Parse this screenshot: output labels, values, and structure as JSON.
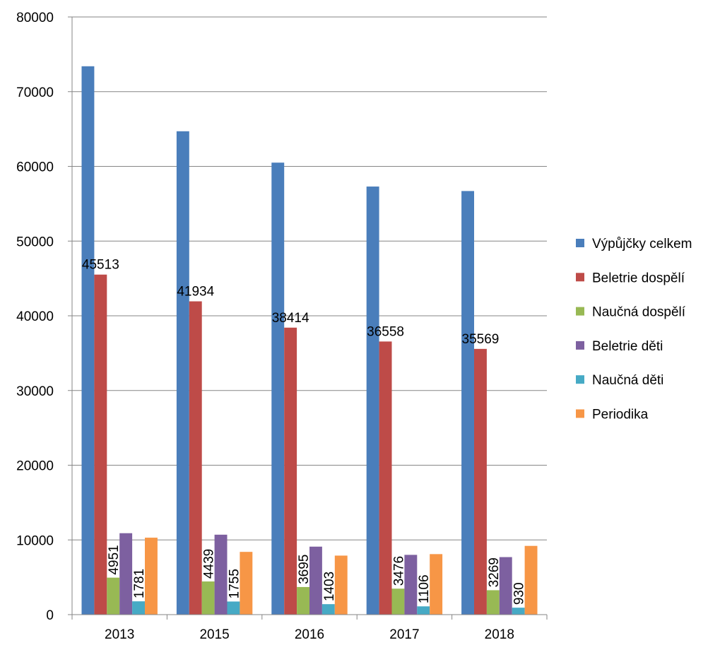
{
  "chart_data": {
    "type": "bar",
    "categories": [
      "2013",
      "2015",
      "2016",
      "2017",
      "2018"
    ],
    "ylim": [
      0,
      80000
    ],
    "yticks": [
      0,
      10000,
      20000,
      30000,
      40000,
      50000,
      60000,
      70000,
      80000
    ],
    "grid": true,
    "legend_position": "right",
    "series": [
      {
        "name": "Výpůjčky celkem",
        "color": "#4A7EBB",
        "values": [
          73400,
          64700,
          60500,
          57300,
          56700
        ],
        "labels": []
      },
      {
        "name": "Beletrie dospělí",
        "color": "#BE4B48",
        "values": [
          45513,
          41934,
          38414,
          36558,
          35569
        ],
        "labels": [
          "45513",
          "41934",
          "38414",
          "36558",
          "35569"
        ]
      },
      {
        "name": "Naučná dospělí",
        "color": "#98B954",
        "values": [
          4951,
          4439,
          3695,
          3476,
          3269
        ],
        "labels": [
          "4951",
          "4439",
          "3695",
          "3476",
          "3269"
        ]
      },
      {
        "name": "Beletrie děti",
        "color": "#7D60A0",
        "values": [
          10900,
          10700,
          9100,
          8000,
          7700
        ],
        "labels": []
      },
      {
        "name": "Naučná děti",
        "color": "#46AAC5",
        "values": [
          1781,
          1755,
          1403,
          1106,
          930
        ],
        "labels": [
          "1781",
          "1755",
          "1403",
          "1106",
          "930"
        ]
      },
      {
        "name": "Periodika",
        "color": "#F79646",
        "values": [
          10300,
          8400,
          7900,
          8100,
          9200
        ],
        "labels": []
      }
    ]
  }
}
